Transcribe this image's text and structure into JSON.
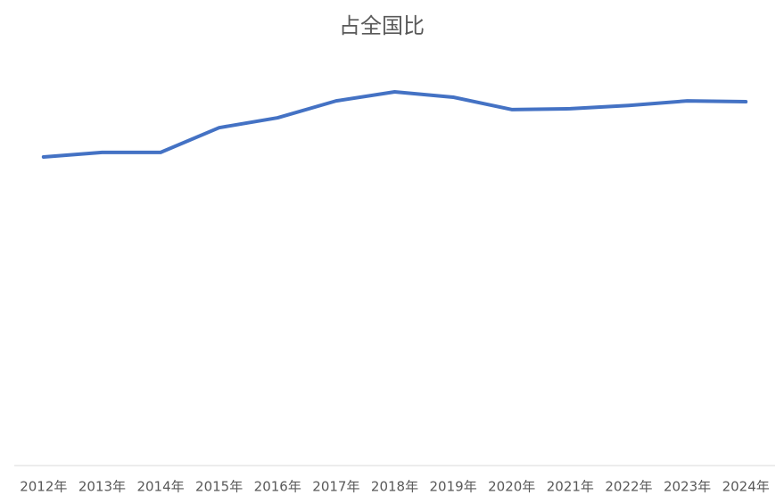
{
  "chart_data": {
    "type": "line",
    "title": "占全国比",
    "categories": [
      "2012年",
      "2013年",
      "2014年",
      "2015年",
      "2016年",
      "2017年",
      "2018年",
      "2019年",
      "2020年",
      "2021年",
      "2022年",
      "2023年",
      "2024年"
    ],
    "series": [
      {
        "name": "占全国比",
        "color": "#4472c4",
        "values": [
          74.9,
          76.0,
          76.0,
          82.0,
          84.4,
          88.5,
          90.7,
          89.4,
          86.4,
          86.6,
          87.4,
          88.5,
          88.3
        ]
      }
    ],
    "ylim": [
      0,
      100
    ]
  }
}
